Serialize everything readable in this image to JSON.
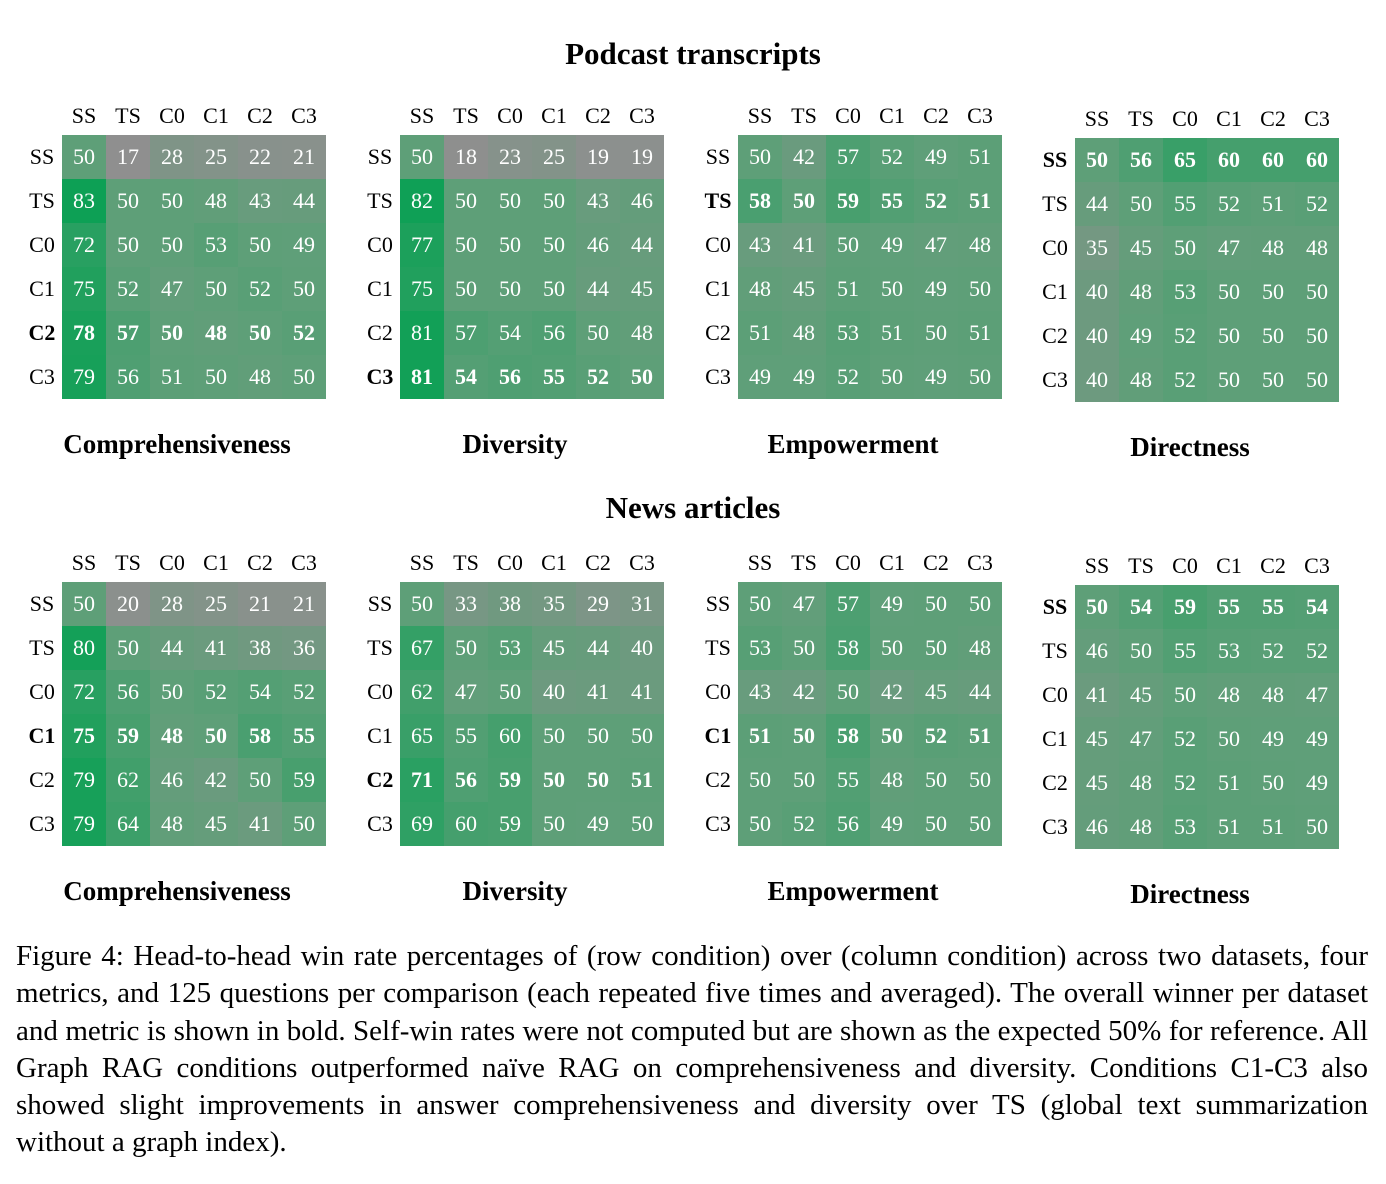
{
  "caption": "Figure 4: Head-to-head win rate percentages of (row condition) over (column condition) across two datasets, four metrics, and 125 questions per comparison (each repeated five times and averaged). The overall winner per dataset and metric is shown in bold. Self-win rates were not computed but are shown as the expected 50% for reference. All Graph RAG conditions outperformed naïve RAG on comprehensiveness and diversity. Conditions C1-C3 also showed slight improvements in answer comprehensiveness and diversity over TS (global text summarization without a graph index).",
  "colors": {
    "low": "#8f8f8f",
    "mid": "#5e9f78",
    "high": "#0da055",
    "text": "#ffffff"
  },
  "chart_data": [
    {
      "type": "heatmap",
      "dataset": "Podcast transcripts",
      "metric": "Comprehensiveness",
      "rows": [
        "SS",
        "TS",
        "C0",
        "C1",
        "C2",
        "C3"
      ],
      "cols": [
        "SS",
        "TS",
        "C0",
        "C1",
        "C2",
        "C3"
      ],
      "winner": "C2",
      "values": [
        [
          50,
          17,
          28,
          25,
          22,
          21
        ],
        [
          83,
          50,
          50,
          48,
          43,
          44
        ],
        [
          72,
          50,
          50,
          53,
          50,
          49
        ],
        [
          75,
          52,
          47,
          50,
          52,
          50
        ],
        [
          78,
          57,
          50,
          48,
          50,
          52
        ],
        [
          79,
          56,
          51,
          50,
          48,
          50
        ]
      ]
    },
    {
      "type": "heatmap",
      "dataset": "Podcast transcripts",
      "metric": "Diversity",
      "rows": [
        "SS",
        "TS",
        "C0",
        "C1",
        "C2",
        "C3"
      ],
      "cols": [
        "SS",
        "TS",
        "C0",
        "C1",
        "C2",
        "C3"
      ],
      "winner": "C3",
      "values": [
        [
          50,
          18,
          23,
          25,
          19,
          19
        ],
        [
          82,
          50,
          50,
          50,
          43,
          46
        ],
        [
          77,
          50,
          50,
          50,
          46,
          44
        ],
        [
          75,
          50,
          50,
          50,
          44,
          45
        ],
        [
          81,
          57,
          54,
          56,
          50,
          48
        ],
        [
          81,
          54,
          56,
          55,
          52,
          50
        ]
      ]
    },
    {
      "type": "heatmap",
      "dataset": "Podcast transcripts",
      "metric": "Empowerment",
      "rows": [
        "SS",
        "TS",
        "C0",
        "C1",
        "C2",
        "C3"
      ],
      "cols": [
        "SS",
        "TS",
        "C0",
        "C1",
        "C2",
        "C3"
      ],
      "winner": "TS",
      "values": [
        [
          50,
          42,
          57,
          52,
          49,
          51
        ],
        [
          58,
          50,
          59,
          55,
          52,
          51
        ],
        [
          43,
          41,
          50,
          49,
          47,
          48
        ],
        [
          48,
          45,
          51,
          50,
          49,
          50
        ],
        [
          51,
          48,
          53,
          51,
          50,
          51
        ],
        [
          49,
          49,
          52,
          50,
          49,
          50
        ]
      ]
    },
    {
      "type": "heatmap",
      "dataset": "Podcast transcripts",
      "metric": "Directness",
      "rows": [
        "SS",
        "TS",
        "C0",
        "C1",
        "C2",
        "C3"
      ],
      "cols": [
        "SS",
        "TS",
        "C0",
        "C1",
        "C2",
        "C3"
      ],
      "winner": "SS",
      "values": [
        [
          50,
          56,
          65,
          60,
          60,
          60
        ],
        [
          44,
          50,
          55,
          52,
          51,
          52
        ],
        [
          35,
          45,
          50,
          47,
          48,
          48
        ],
        [
          40,
          48,
          53,
          50,
          50,
          50
        ],
        [
          40,
          49,
          52,
          50,
          50,
          50
        ],
        [
          40,
          48,
          52,
          50,
          50,
          50
        ]
      ]
    },
    {
      "type": "heatmap",
      "dataset": "News articles",
      "metric": "Comprehensiveness",
      "rows": [
        "SS",
        "TS",
        "C0",
        "C1",
        "C2",
        "C3"
      ],
      "cols": [
        "SS",
        "TS",
        "C0",
        "C1",
        "C2",
        "C3"
      ],
      "winner": "C1",
      "values": [
        [
          50,
          20,
          28,
          25,
          21,
          21
        ],
        [
          80,
          50,
          44,
          41,
          38,
          36
        ],
        [
          72,
          56,
          50,
          52,
          54,
          52
        ],
        [
          75,
          59,
          48,
          50,
          58,
          55
        ],
        [
          79,
          62,
          46,
          42,
          50,
          59
        ],
        [
          79,
          64,
          48,
          45,
          41,
          50
        ]
      ]
    },
    {
      "type": "heatmap",
      "dataset": "News articles",
      "metric": "Diversity",
      "rows": [
        "SS",
        "TS",
        "C0",
        "C1",
        "C2",
        "C3"
      ],
      "cols": [
        "SS",
        "TS",
        "C0",
        "C1",
        "C2",
        "C3"
      ],
      "winner": "C2",
      "values": [
        [
          50,
          33,
          38,
          35,
          29,
          31
        ],
        [
          67,
          50,
          53,
          45,
          44,
          40
        ],
        [
          62,
          47,
          50,
          40,
          41,
          41
        ],
        [
          65,
          55,
          60,
          50,
          50,
          50
        ],
        [
          71,
          56,
          59,
          50,
          50,
          51
        ],
        [
          69,
          60,
          59,
          50,
          49,
          50
        ]
      ]
    },
    {
      "type": "heatmap",
      "dataset": "News articles",
      "metric": "Empowerment",
      "rows": [
        "SS",
        "TS",
        "C0",
        "C1",
        "C2",
        "C3"
      ],
      "cols": [
        "SS",
        "TS",
        "C0",
        "C1",
        "C2",
        "C3"
      ],
      "winner": "C1",
      "values": [
        [
          50,
          47,
          57,
          49,
          50,
          50
        ],
        [
          53,
          50,
          58,
          50,
          50,
          48
        ],
        [
          43,
          42,
          50,
          42,
          45,
          44
        ],
        [
          51,
          50,
          58,
          50,
          52,
          51
        ],
        [
          50,
          50,
          55,
          48,
          50,
          50
        ],
        [
          50,
          52,
          56,
          49,
          50,
          50
        ]
      ]
    },
    {
      "type": "heatmap",
      "dataset": "News articles",
      "metric": "Directness",
      "rows": [
        "SS",
        "TS",
        "C0",
        "C1",
        "C2",
        "C3"
      ],
      "cols": [
        "SS",
        "TS",
        "C0",
        "C1",
        "C2",
        "C3"
      ],
      "winner": "SS",
      "values": [
        [
          50,
          54,
          59,
          55,
          55,
          54
        ],
        [
          46,
          50,
          55,
          53,
          52,
          52
        ],
        [
          41,
          45,
          50,
          48,
          48,
          47
        ],
        [
          45,
          47,
          52,
          50,
          49,
          49
        ],
        [
          45,
          48,
          52,
          51,
          50,
          49
        ],
        [
          46,
          48,
          53,
          51,
          51,
          50
        ]
      ]
    }
  ]
}
